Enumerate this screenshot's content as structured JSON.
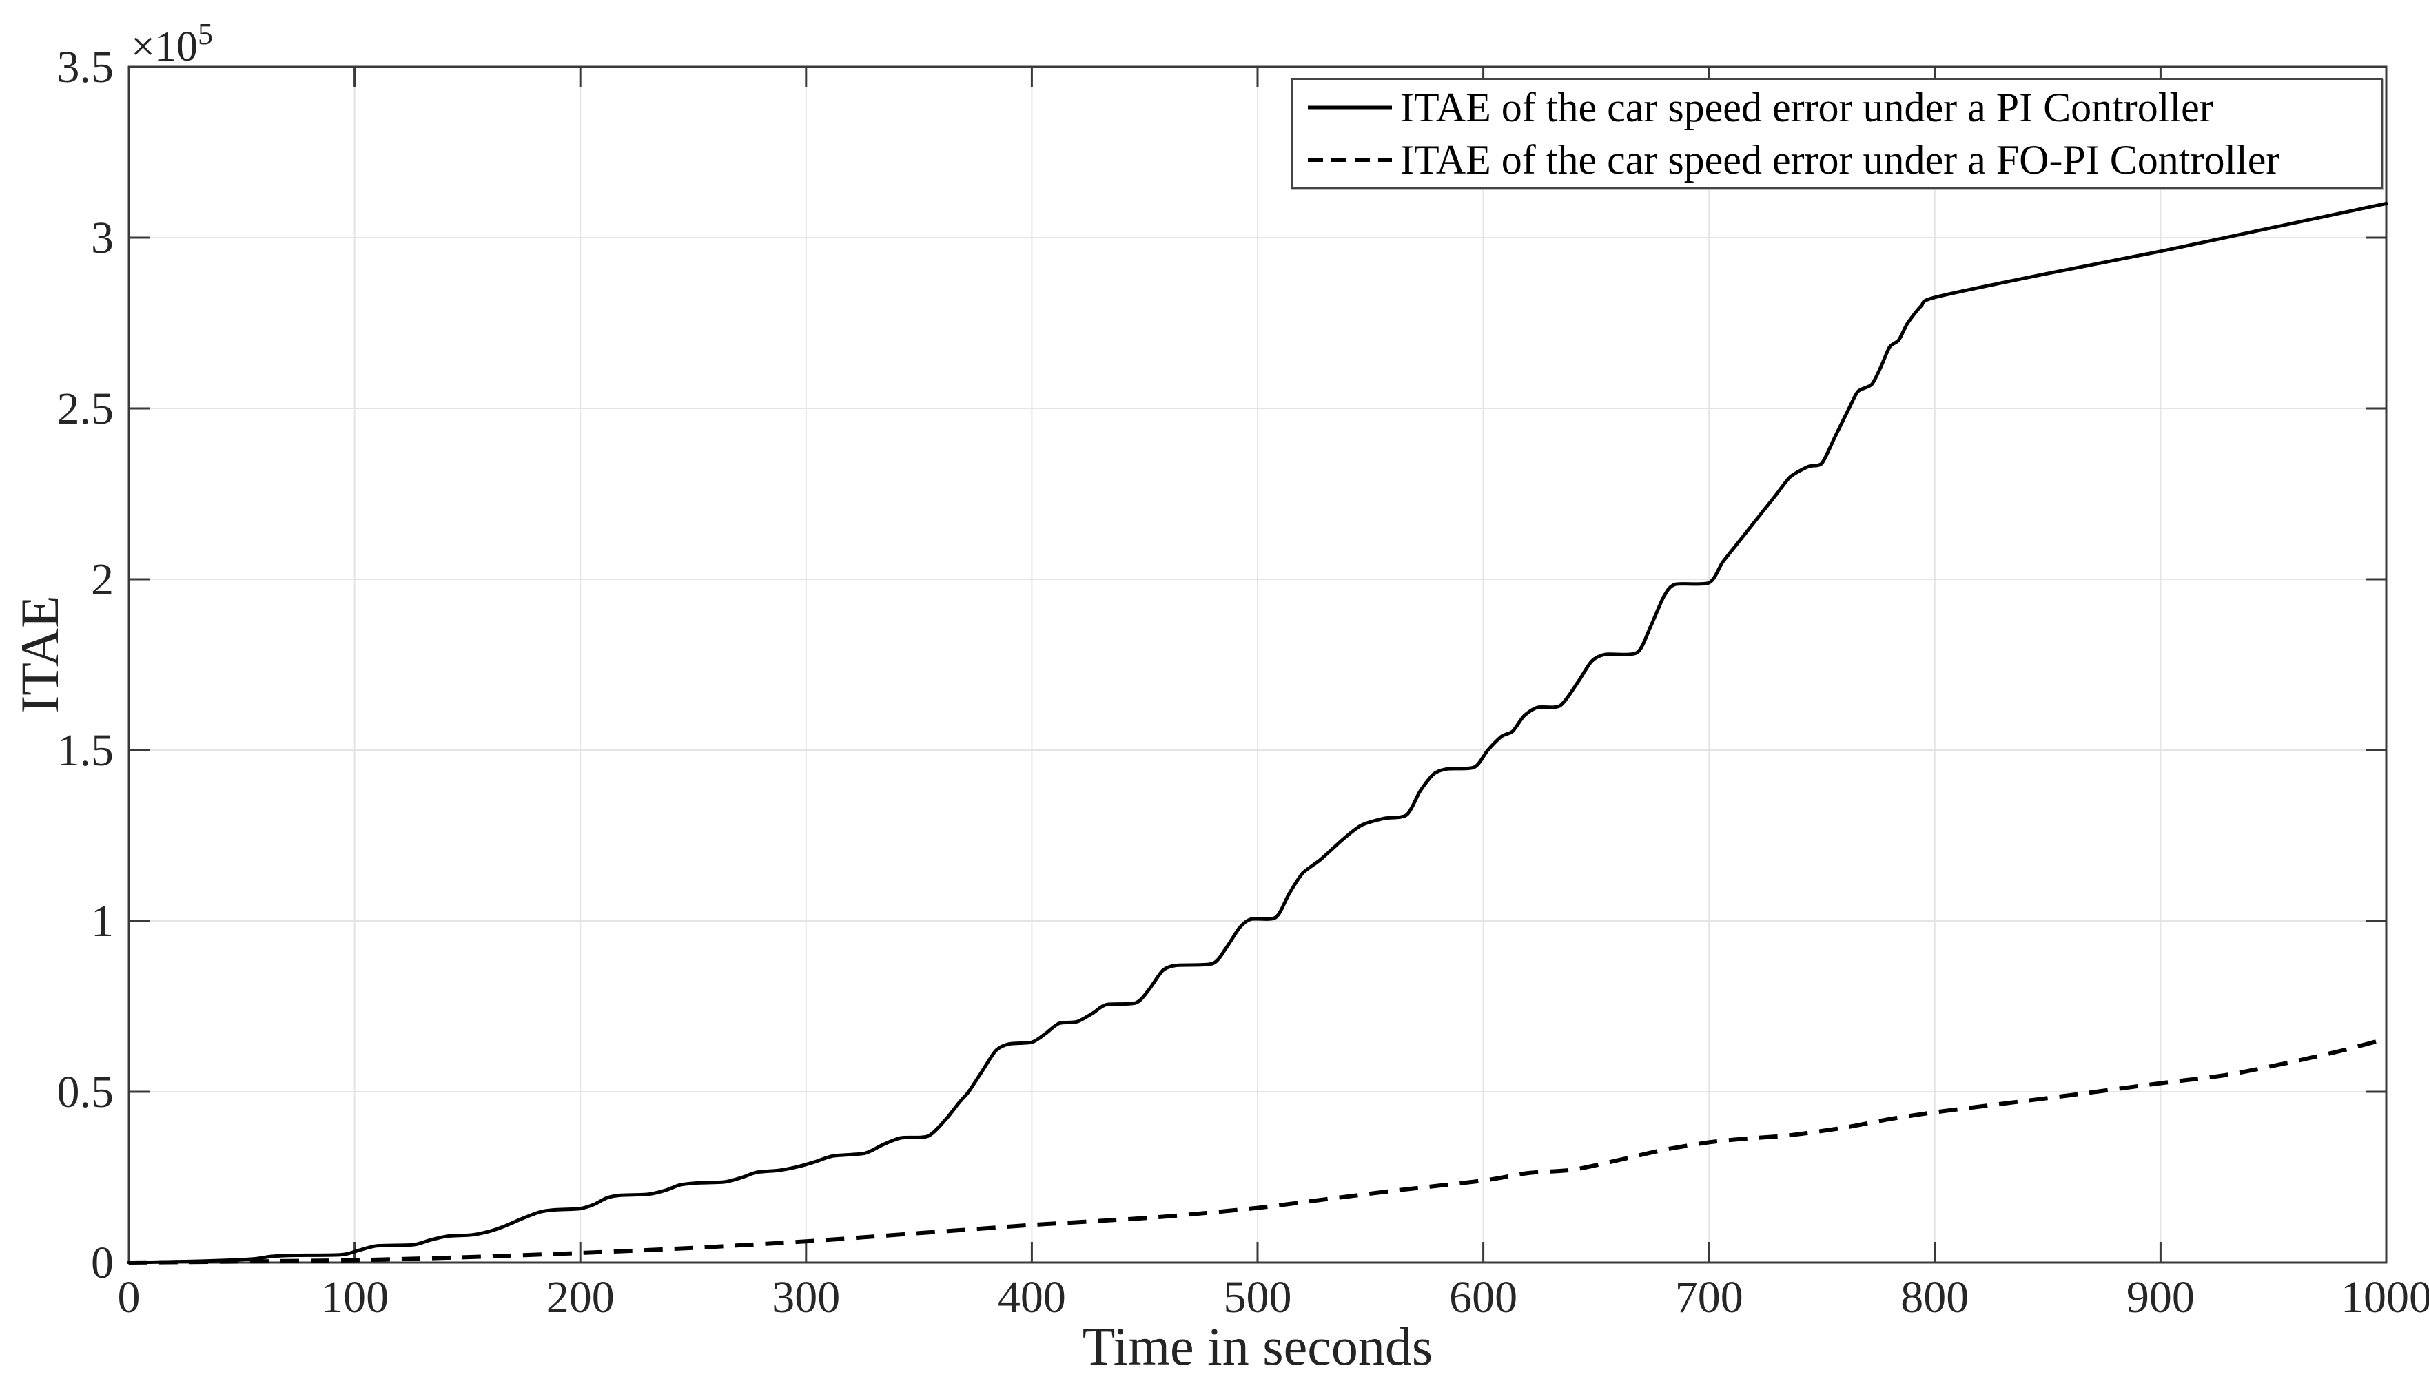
{
  "figure": {
    "background": "#ffffff",
    "axis_color": "#3a3a3a",
    "grid_color": "#e4e4e4",
    "tick_label_color": "#262626",
    "line_color": "#000000"
  },
  "chart_data": {
    "type": "line",
    "title": "",
    "xlabel": "Time in seconds",
    "ylabel": "ITAE",
    "y_exponent_label": {
      "multiplier": "×10",
      "exponent": "5"
    },
    "grid": true,
    "legend_position": "top-right",
    "xlim": [
      0,
      1000
    ],
    "ylim": [
      0,
      350000
    ],
    "xticks": [
      0,
      100,
      200,
      300,
      400,
      500,
      600,
      700,
      800,
      900,
      1000
    ],
    "xtick_labels": [
      "0",
      "100",
      "200",
      "300",
      "400",
      "500",
      "600",
      "700",
      "800",
      "900",
      "1000"
    ],
    "yticks": [
      0,
      50000,
      100000,
      150000,
      200000,
      250000,
      300000,
      350000
    ],
    "ytick_labels": [
      "0",
      "0.5",
      "1",
      "1.5",
      "2",
      "2.5",
      "3",
      "3.5"
    ],
    "series": [
      {
        "name": "ITAE of the car speed error under a PI Controller",
        "style": "solid",
        "color": "#000000",
        "points": [
          [
            0,
            0
          ],
          [
            25,
            300
          ],
          [
            45,
            700
          ],
          [
            56,
            1100
          ],
          [
            63,
            1800
          ],
          [
            72,
            2100
          ],
          [
            94,
            2300
          ],
          [
            102,
            3600
          ],
          [
            110,
            4900
          ],
          [
            126,
            5200
          ],
          [
            133,
            6500
          ],
          [
            141,
            7700
          ],
          [
            152,
            8100
          ],
          [
            160,
            9200
          ],
          [
            167,
            10800
          ],
          [
            174,
            12800
          ],
          [
            182,
            14800
          ],
          [
            188,
            15400
          ],
          [
            200,
            15800
          ],
          [
            206,
            17000
          ],
          [
            212,
            19000
          ],
          [
            218,
            19700
          ],
          [
            230,
            20000
          ],
          [
            238,
            21200
          ],
          [
            244,
            22700
          ],
          [
            252,
            23300
          ],
          [
            264,
            23600
          ],
          [
            272,
            25000
          ],
          [
            278,
            26400
          ],
          [
            288,
            27000
          ],
          [
            296,
            28000
          ],
          [
            304,
            29500
          ],
          [
            312,
            31200
          ],
          [
            326,
            32000
          ],
          [
            334,
            34500
          ],
          [
            342,
            36500
          ],
          [
            354,
            37000
          ],
          [
            362,
            42000
          ],
          [
            368,
            47000
          ],
          [
            372,
            50000
          ],
          [
            378,
            56000
          ],
          [
            384,
            62000
          ],
          [
            390,
            64000
          ],
          [
            400,
            64500
          ],
          [
            406,
            67000
          ],
          [
            412,
            70000
          ],
          [
            420,
            70500
          ],
          [
            427,
            73000
          ],
          [
            433,
            75500
          ],
          [
            446,
            76000
          ],
          [
            452,
            80000
          ],
          [
            458,
            85500
          ],
          [
            464,
            87000
          ],
          [
            480,
            87500
          ],
          [
            486,
            92000
          ],
          [
            492,
            98000
          ],
          [
            497,
            100500
          ],
          [
            508,
            101000
          ],
          [
            514,
            108000
          ],
          [
            520,
            114000
          ],
          [
            528,
            118000
          ],
          [
            538,
            124000
          ],
          [
            546,
            128000
          ],
          [
            556,
            130000
          ],
          [
            566,
            131000
          ],
          [
            572,
            138000
          ],
          [
            578,
            143000
          ],
          [
            584,
            144500
          ],
          [
            596,
            145000
          ],
          [
            602,
            150000
          ],
          [
            608,
            154000
          ],
          [
            613,
            155500
          ],
          [
            618,
            160000
          ],
          [
            624,
            162500
          ],
          [
            634,
            163000
          ],
          [
            642,
            170000
          ],
          [
            648,
            176000
          ],
          [
            654,
            178000
          ],
          [
            668,
            178500
          ],
          [
            674,
            186000
          ],
          [
            680,
            195000
          ],
          [
            685,
            198500
          ],
          [
            700,
            199000
          ],
          [
            706,
            205000
          ],
          [
            712,
            210000
          ],
          [
            718,
            215000
          ],
          [
            724,
            220000
          ],
          [
            730,
            225000
          ],
          [
            736,
            230000
          ],
          [
            744,
            233000
          ],
          [
            750,
            234000
          ],
          [
            756,
            242000
          ],
          [
            762,
            250000
          ],
          [
            766,
            255000
          ],
          [
            772,
            257000
          ],
          [
            776,
            262000
          ],
          [
            780,
            268000
          ],
          [
            784,
            270000
          ],
          [
            788,
            275000
          ],
          [
            794,
            280000
          ],
          [
            800,
            282500
          ],
          [
            850,
            289500
          ],
          [
            900,
            296000
          ],
          [
            950,
            303000
          ],
          [
            1000,
            310000
          ]
        ]
      },
      {
        "name": "ITAE of the car speed error under a FO-PI Controller",
        "style": "dashed",
        "color": "#000000",
        "points": [
          [
            0,
            0
          ],
          [
            50,
            300
          ],
          [
            100,
            700
          ],
          [
            150,
            1600
          ],
          [
            200,
            2800
          ],
          [
            250,
            4300
          ],
          [
            300,
            6200
          ],
          [
            350,
            8600
          ],
          [
            400,
            11000
          ],
          [
            430,
            12200
          ],
          [
            460,
            13500
          ],
          [
            500,
            16000
          ],
          [
            530,
            18500
          ],
          [
            560,
            21000
          ],
          [
            600,
            24000
          ],
          [
            620,
            26200
          ],
          [
            640,
            27200
          ],
          [
            660,
            30000
          ],
          [
            680,
            33000
          ],
          [
            700,
            35200
          ],
          [
            715,
            36200
          ],
          [
            735,
            37200
          ],
          [
            760,
            39500
          ],
          [
            780,
            42000
          ],
          [
            800,
            44000
          ],
          [
            830,
            46500
          ],
          [
            860,
            49000
          ],
          [
            900,
            52500
          ],
          [
            930,
            55000
          ],
          [
            960,
            59000
          ],
          [
            980,
            62000
          ],
          [
            1000,
            65500
          ]
        ]
      }
    ]
  },
  "legend": {
    "entries": [
      {
        "label": "ITAE of the car speed error under a PI Controller",
        "style": "solid"
      },
      {
        "label": "ITAE of the car speed error under a FO-PI Controller",
        "style": "dashed"
      }
    ]
  }
}
